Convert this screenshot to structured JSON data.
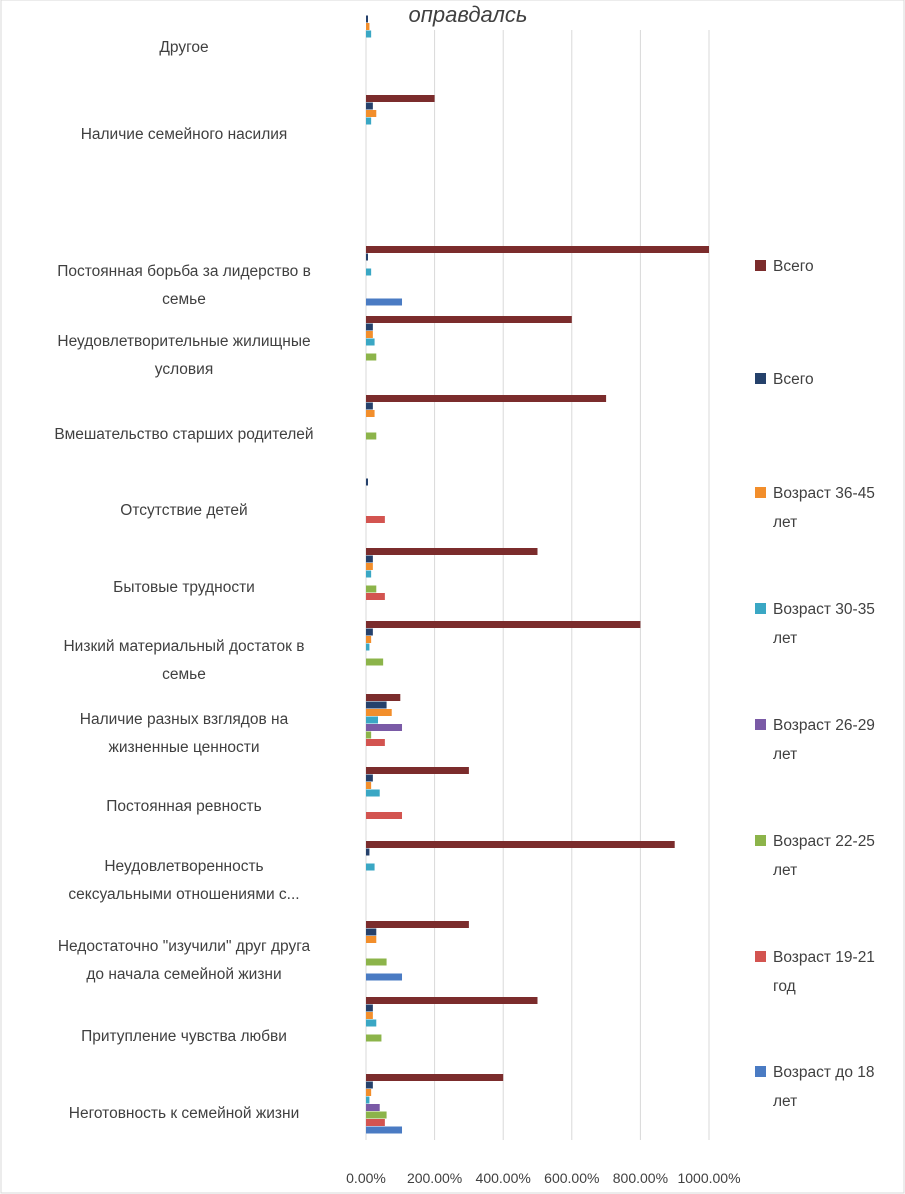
{
  "chart_data": {
    "type": "bar",
    "orientation": "horizontal",
    "title": "оправдалсь",
    "xlim": [
      0,
      1000
    ],
    "x_ticks": [
      0,
      200,
      400,
      600,
      800,
      1000
    ],
    "x_tick_labels": [
      "0.00%",
      "200.00%",
      "400.00%",
      "600.00%",
      "800.00%",
      "1000.00%"
    ],
    "grid": true,
    "legend_position": "right",
    "categories": [
      {
        "lines": [
          "Другое"
        ]
      },
      {
        "lines": [
          "Наличие семейного насилия"
        ]
      },
      {
        "lines": []
      },
      {
        "lines": [
          "Постоянная борьба  за лидерство в",
          "семье"
        ]
      },
      {
        "lines": [
          "Неудовлетворительные жилищные",
          "условия"
        ]
      },
      {
        "lines": [
          "Вмешательство старших родителей"
        ]
      },
      {
        "lines": [
          "Отсутствие детей"
        ]
      },
      {
        "lines": [
          "Бытовые трудности"
        ]
      },
      {
        "lines": [
          "Низкий материальный достаток в",
          "семье"
        ]
      },
      {
        "lines": [
          "Наличие разных взглядов на",
          "жизненные ценности"
        ]
      },
      {
        "lines": [
          "Постоянная ревность"
        ]
      },
      {
        "lines": [
          "Неудовлетворенность",
          "сексуальными отношениями с..."
        ]
      },
      {
        "lines": [
          "Недостаточно \"изучили\" друг друга",
          "до начала семейной жизни"
        ]
      },
      {
        "lines": [
          "Притупление чувства любви"
        ]
      },
      {
        "lines": [
          "Неготовность к семейной жизни"
        ]
      }
    ],
    "series": [
      {
        "name": "Всего",
        "color": "#7b2c2c",
        "values": [
          0,
          200,
          0,
          1000,
          600,
          700,
          0,
          500,
          800,
          100,
          300,
          900,
          300,
          500,
          400
        ]
      },
      {
        "name": "Всего",
        "color": "#25416b",
        "values": [
          5,
          20,
          0,
          5,
          20,
          20,
          5,
          20,
          20,
          60,
          20,
          10,
          30,
          20,
          20
        ]
      },
      {
        "name": "Возраст 36-45 лет",
        "color": "#f28e2b",
        "values": [
          10,
          30,
          0,
          0,
          20,
          25,
          0,
          20,
          15,
          75,
          15,
          0,
          30,
          20,
          15
        ]
      },
      {
        "name": "Возраст 30-35 лет",
        "color": "#3aa7c4",
        "values": [
          15,
          15,
          0,
          15,
          25,
          0,
          0,
          15,
          10,
          35,
          40,
          25,
          0,
          30,
          10
        ]
      },
      {
        "name": "Возраст 26-29 лет",
        "color": "#7a5aa6",
        "values": [
          0,
          0,
          0,
          0,
          0,
          0,
          0,
          0,
          0,
          105,
          0,
          0,
          0,
          0,
          40
        ]
      },
      {
        "name": "Возраст 22-25 лет",
        "color": "#8cb44a",
        "values": [
          0,
          0,
          0,
          0,
          30,
          30,
          0,
          30,
          50,
          15,
          0,
          0,
          60,
          45,
          60
        ]
      },
      {
        "name": "Возраст 19-21 год",
        "color": "#d35450",
        "values": [
          0,
          0,
          0,
          0,
          0,
          0,
          55,
          55,
          0,
          55,
          105,
          0,
          0,
          0,
          55
        ]
      },
      {
        "name": "Возраст до 18 лет",
        "color": "#4a7bc3",
        "values": [
          0,
          0,
          0,
          105,
          0,
          0,
          0,
          0,
          0,
          0,
          0,
          0,
          105,
          0,
          105
        ]
      }
    ],
    "legend": [
      {
        "lines": [
          "Всего"
        ],
        "color": "#7b2c2c"
      },
      {
        "lines": [
          "Всего"
        ],
        "color": "#25416b"
      },
      {
        "lines": [
          "Возраст 36-45",
          "лет"
        ],
        "color": "#f28e2b"
      },
      {
        "lines": [
          "Возраст 30-35",
          "лет"
        ],
        "color": "#3aa7c4"
      },
      {
        "lines": [
          "Возраст 26-29",
          "лет"
        ],
        "color": "#7a5aa6"
      },
      {
        "lines": [
          "Возраст 22-25",
          "лет"
        ],
        "color": "#8cb44a"
      },
      {
        "lines": [
          "Возраст 19-21",
          "год"
        ],
        "color": "#d35450"
      },
      {
        "lines": [
          "Возраст до 18",
          "лет"
        ],
        "color": "#4a7bc3"
      }
    ]
  }
}
